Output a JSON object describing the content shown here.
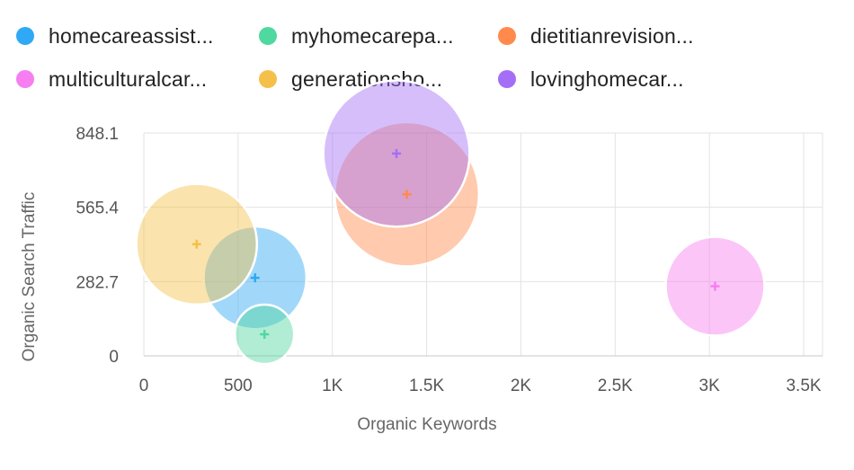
{
  "legend": {
    "items": [
      {
        "label": "homecareassist...",
        "color": "#2fa9f5"
      },
      {
        "label": "myhomecarepa...",
        "color": "#4fd8a0"
      },
      {
        "label": "dietitianrevision...",
        "color": "#ff8a4c"
      },
      {
        "label": "multiculturalcar...",
        "color": "#f77ef0"
      },
      {
        "label": "generationsho...",
        "color": "#f5c04a"
      },
      {
        "label": "lovinghomecar...",
        "color": "#a56ef7"
      }
    ]
  },
  "chart_data": {
    "type": "scatter",
    "bubble": true,
    "xlabel": "Organic Keywords",
    "ylabel": "Organic Search Traffic",
    "xlim": [
      0,
      3600
    ],
    "ylim": [
      0,
      848.1
    ],
    "x_ticks": [
      0,
      500,
      1000,
      1500,
      2000,
      2500,
      3000,
      3500
    ],
    "x_tick_labels": [
      "0",
      "500",
      "1K",
      "1.5K",
      "2K",
      "2.5K",
      "3K",
      "3.5K"
    ],
    "y_ticks": [
      0,
      282.7,
      565.4,
      848.1
    ],
    "y_tick_labels": [
      "0",
      "282.7",
      "565.4",
      "848.1"
    ],
    "grid": true,
    "legend_position": "top",
    "series": [
      {
        "name": "homecareassist...",
        "color": "#2fa9f5",
        "x": 590,
        "y": 297,
        "size": 0.52
      },
      {
        "name": "myhomecarepa...",
        "color": "#4fd8a0",
        "x": 640,
        "y": 82,
        "size": 0.3
      },
      {
        "name": "dietitianrevision...",
        "color": "#ff8a4c",
        "x": 1395,
        "y": 615,
        "size": 0.73
      },
      {
        "name": "multiculturalcar...",
        "color": "#f77ef0",
        "x": 3030,
        "y": 265,
        "size": 0.5
      },
      {
        "name": "generationsho...",
        "color": "#f5c04a",
        "x": 280,
        "y": 425,
        "size": 0.61
      },
      {
        "name": "lovinghomecar...",
        "color": "#a56ef7",
        "x": 1340,
        "y": 770,
        "size": 0.74
      }
    ]
  }
}
